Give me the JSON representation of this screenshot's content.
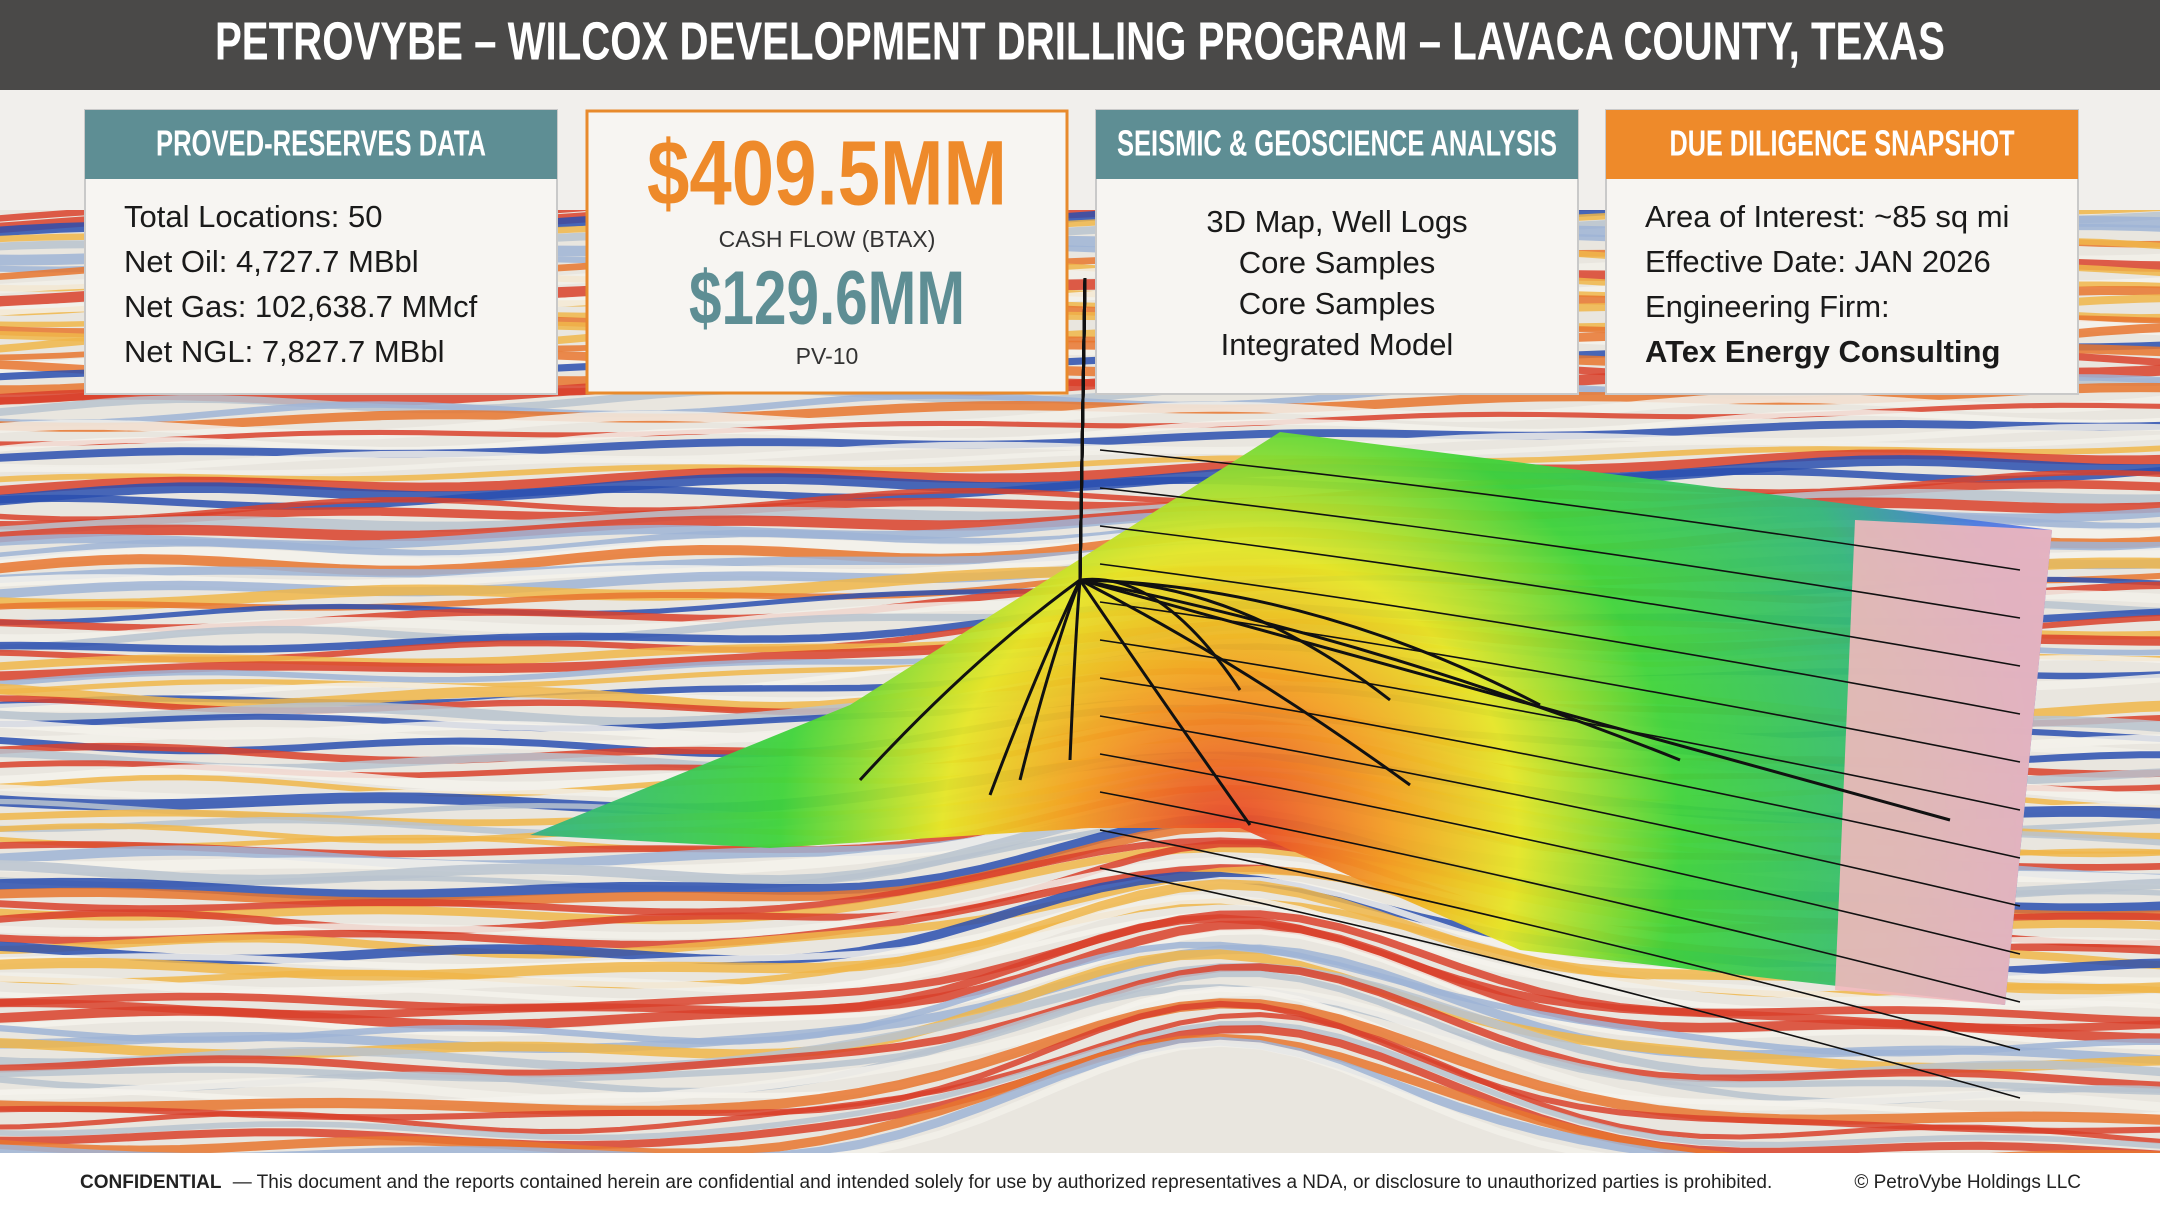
{
  "header": {
    "title": "PETROVYBE – WILCOX DEVELOPMENT DRILLING PROGRAM – LAVACA COUNTY, TEXAS"
  },
  "reserves": {
    "title": "PROVED-RESERVES DATA",
    "lines": [
      "Total Locations: 50",
      "Net Oil: 4,727.7 MBbl",
      "Net Gas: 102,638.7 MMcf",
      "Net NGL: 7,827.7 MBbl"
    ]
  },
  "value": {
    "cash_flow": "$409.5MM",
    "cash_flow_label": "CASH FLOW (BTAX)",
    "pv10": "$129.6MM",
    "pv10_label": "PV-10"
  },
  "seismic": {
    "title": "SEISMIC & GEOSCIENCE ANALYSIS",
    "lines": [
      "3D Map, Well Logs",
      "Core Samples",
      "Core Samples",
      "Integrated Model"
    ]
  },
  "diligence": {
    "title": "DUE DILIGENCE SNAPSHOT",
    "lines": [
      "Area of Interest: ~85 sq mi",
      "Effective Date: JAN 2026",
      "Engineering Firm:",
      "ATex Energy Consulting"
    ]
  },
  "footer": {
    "label": "CONFIDENTIAL",
    "text": "— This document and the reports contained herein are confidential and intended solely for use by authorized representatives a NDA, or disclosure to unauthorized parties is prohibited.",
    "copyright": "© PetroVybe Holdings LLC"
  }
}
